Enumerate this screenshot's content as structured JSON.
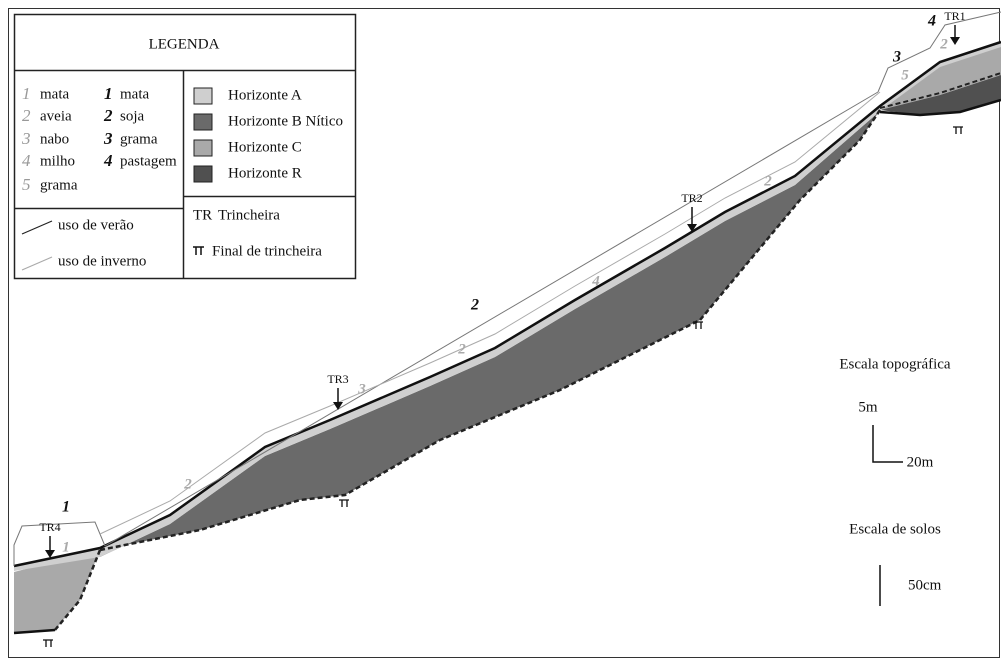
{
  "legend": {
    "title": "LEGENDA",
    "winter_uses": [
      {
        "number": "1",
        "label": "mata"
      },
      {
        "number": "2",
        "label": "aveia"
      },
      {
        "number": "3",
        "label": "nabo"
      },
      {
        "number": "4",
        "label": "milho"
      },
      {
        "number": "5",
        "label": "grama"
      }
    ],
    "summer_uses": [
      {
        "number": "1",
        "label": "mata"
      },
      {
        "number": "2",
        "label": "soja"
      },
      {
        "number": "3",
        "label": "grama"
      },
      {
        "number": "4",
        "label": "pastagem"
      }
    ],
    "lines": [
      "uso de verão",
      "uso de inverno"
    ],
    "horizons": [
      "Horizonte A",
      "Horizonte B Nítico",
      "Horizonte C",
      "Horizonte R"
    ],
    "trench": {
      "abbr": "TR",
      "label": "Trincheira"
    },
    "trench_end": "Final de trincheira"
  },
  "profile": {
    "trenches": [
      "TR1",
      "TR2",
      "TR3",
      "TR4"
    ],
    "use_labels": [
      "1",
      "1",
      "2",
      "3",
      "2",
      "2",
      "4",
      "2",
      "3",
      "5",
      "4",
      "2"
    ]
  },
  "scale": {
    "topographic": {
      "title": "Escala topográfica",
      "vertical": "5m",
      "horizontal": "20m"
    },
    "soil": {
      "title": "Escala de solos",
      "length": "50cm"
    }
  }
}
